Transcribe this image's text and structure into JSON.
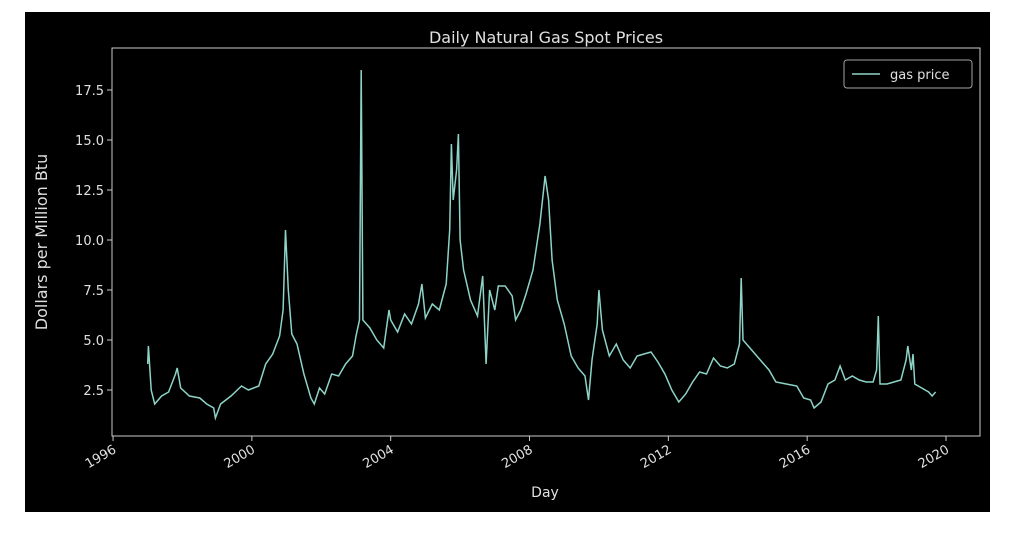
{
  "chart_data": {
    "type": "line",
    "title": "Daily Natural Gas Spot Prices",
    "xlabel": "Day",
    "ylabel": "Dollars per Million Btu",
    "x": [
      1997.0,
      1997.02,
      1997.1,
      1997.2,
      1997.4,
      1997.6,
      1997.8,
      1997.85,
      1997.95,
      1998.2,
      1998.5,
      1998.7,
      1998.9,
      1998.95,
      1999.1,
      1999.4,
      1999.7,
      1999.9,
      2000.2,
      2000.4,
      2000.6,
      2000.8,
      2000.9,
      2000.97,
      2001.05,
      2001.15,
      2001.3,
      2001.5,
      2001.7,
      2001.8,
      2001.95,
      2002.1,
      2002.3,
      2002.5,
      2002.7,
      2002.9,
      2003.0,
      2003.1,
      2003.15,
      2003.2,
      2003.4,
      2003.6,
      2003.8,
      2003.95,
      2004.0,
      2004.2,
      2004.4,
      2004.6,
      2004.8,
      2004.9,
      2005.0,
      2005.2,
      2005.4,
      2005.6,
      2005.7,
      2005.75,
      2005.8,
      2005.9,
      2005.95,
      2006.0,
      2006.1,
      2006.3,
      2006.5,
      2006.65,
      2006.75,
      2006.85,
      2007.0,
      2007.1,
      2007.3,
      2007.5,
      2007.6,
      2007.75,
      2007.9,
      2008.1,
      2008.3,
      2008.45,
      2008.55,
      2008.65,
      2008.8,
      2009.0,
      2009.2,
      2009.4,
      2009.6,
      2009.7,
      2009.8,
      2009.95,
      2010.0,
      2010.1,
      2010.3,
      2010.5,
      2010.7,
      2010.9,
      2011.1,
      2011.3,
      2011.5,
      2011.7,
      2011.9,
      2012.1,
      2012.3,
      2012.5,
      2012.7,
      2012.9,
      2013.1,
      2013.3,
      2013.5,
      2013.7,
      2013.9,
      2014.05,
      2014.1,
      2014.15,
      2014.3,
      2014.5,
      2014.7,
      2014.9,
      2015.1,
      2015.4,
      2015.7,
      2015.9,
      2016.1,
      2016.2,
      2016.4,
      2016.6,
      2016.8,
      2016.95,
      2017.1,
      2017.3,
      2017.5,
      2017.7,
      2017.9,
      2018.0,
      2018.05,
      2018.1,
      2018.3,
      2018.5,
      2018.7,
      2018.85,
      2018.9,
      2019.0,
      2019.05,
      2019.1,
      2019.3,
      2019.5,
      2019.6,
      2019.7
    ],
    "series": [
      {
        "name": "gas price",
        "color": "#8dd3c7",
        "values": [
          3.8,
          4.7,
          2.5,
          1.8,
          2.2,
          2.4,
          3.3,
          3.6,
          2.6,
          2.2,
          2.1,
          1.8,
          1.6,
          1.1,
          1.8,
          2.2,
          2.7,
          2.5,
          2.7,
          3.8,
          4.3,
          5.2,
          6.5,
          10.5,
          7.5,
          5.3,
          4.8,
          3.3,
          2.1,
          1.8,
          2.6,
          2.3,
          3.3,
          3.2,
          3.8,
          4.2,
          5.2,
          6.0,
          18.5,
          6.0,
          5.6,
          5.0,
          4.6,
          6.5,
          6.0,
          5.4,
          6.3,
          5.8,
          6.8,
          7.8,
          6.1,
          6.8,
          6.5,
          7.8,
          10.5,
          14.8,
          12,
          13.5,
          15.3,
          10,
          8.5,
          7.0,
          6.2,
          8.2,
          3.8,
          7.5,
          6.5,
          7.7,
          7.7,
          7.2,
          6.0,
          6.5,
          7.3,
          8.5,
          10.8,
          13.2,
          12,
          9,
          7,
          5.8,
          4.2,
          3.6,
          3.2,
          2.0,
          4.0,
          5.8,
          7.5,
          5.5,
          4.2,
          4.8,
          4.0,
          3.6,
          4.2,
          4.3,
          4.4,
          3.9,
          3.3,
          2.5,
          1.9,
          2.3,
          2.9,
          3.4,
          3.3,
          4.1,
          3.7,
          3.6,
          3.8,
          4.8,
          8.1,
          5.0,
          4.7,
          4.3,
          3.9,
          3.5,
          2.9,
          2.8,
          2.7,
          2.1,
          2.0,
          1.6,
          1.9,
          2.8,
          3.0,
          3.7,
          3.0,
          3.2,
          3.0,
          2.9,
          2.9,
          3.5,
          6.2,
          2.8,
          2.8,
          2.9,
          3.0,
          4.0,
          4.7,
          3.5,
          4.3,
          2.8,
          2.6,
          2.4,
          2.2,
          2.4
        ]
      }
    ],
    "xlim": [
      1995.97,
      2020.98
    ],
    "xticks": [
      1996,
      2000,
      2004,
      2008,
      2012,
      2016,
      2020
    ],
    "ylim": [
      0.2,
      19.6
    ],
    "yticks": [
      2.5,
      {
        "value": 5.0,
        "label": "5.0"
      },
      7.5,
      {
        "value": 10.0,
        "label": "10.0"
      },
      12.5,
      {
        "value": 15.0,
        "label": "15.0"
      },
      17.5
    ],
    "legend": "upper right"
  }
}
